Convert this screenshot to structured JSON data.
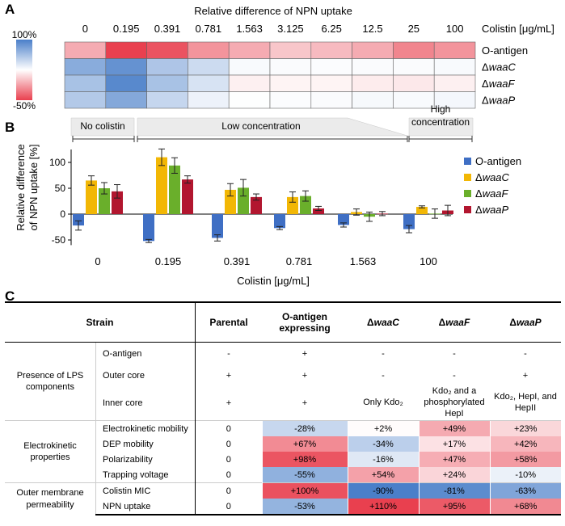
{
  "panel_labels": {
    "a": "A",
    "b": "B",
    "c": "C"
  },
  "chart_data": [
    {
      "type": "heatmap",
      "title": "Relative difference of NPN uptake",
      "x_label": "Colistin [μg/mL]",
      "x_categories": [
        "0",
        "0.195",
        "0.391",
        "0.781",
        "1.563",
        "3.125",
        "6.25",
        "12.5",
        "25",
        "100"
      ],
      "rows": [
        {
          "prefix": "",
          "name": "O-antigen"
        },
        {
          "prefix": "Δ",
          "name": "waaC"
        },
        {
          "prefix": "Δ",
          "name": "waaF"
        },
        {
          "prefix": "Δ",
          "name": "waaP"
        }
      ],
      "values": [
        [
          -22,
          -50,
          -45,
          -28,
          -22,
          -15,
          -18,
          -22,
          -32,
          -28
        ],
        [
          65,
          85,
          45,
          28,
          4,
          3,
          2,
          3,
          3,
          4
        ],
        [
          48,
          92,
          48,
          22,
          -4,
          -3,
          -3,
          -5,
          -6,
          -4
        ],
        [
          42,
          68,
          32,
          10,
          1,
          2,
          3,
          5,
          4,
          6
        ]
      ],
      "colorbar": {
        "max_label": "100%",
        "min_label": "-50%",
        "max": 100,
        "min": -50,
        "max_color": "#4a7fc9",
        "mid_color": "#ffffff",
        "min_color": "#e9404f"
      }
    },
    {
      "type": "bar",
      "ylabel_line1": "Relative difference",
      "ylabel_line2": "of NPN uptake [%]",
      "xlabel": "Colistin [μg/mL]",
      "categories": [
        "0",
        "0.195",
        "0.391",
        "0.781",
        "1.563",
        "100"
      ],
      "ylim": [
        -60,
        130
      ],
      "yticks": [
        -50,
        0,
        50,
        100
      ],
      "brackets": [
        "No colistin",
        "Low concentration",
        "High concentration"
      ],
      "series": [
        {
          "prefix": "",
          "name": "O-antigen",
          "color": "#3f6fc4",
          "values": [
            -22,
            -52,
            -46,
            -27,
            -21,
            -29
          ],
          "errors": [
            9,
            3,
            6,
            3,
            4,
            7
          ]
        },
        {
          "prefix": "Δ",
          "name": "waaC",
          "color": "#f2b705",
          "values": [
            65,
            110,
            47,
            33,
            4,
            14
          ],
          "errors": [
            9,
            16,
            12,
            10,
            6,
            2
          ]
        },
        {
          "prefix": "Δ",
          "name": "waaF",
          "color": "#6aaf2b",
          "values": [
            50,
            94,
            51,
            35,
            -5,
            1
          ],
          "errors": [
            11,
            15,
            16,
            10,
            9,
            9
          ]
        },
        {
          "prefix": "Δ",
          "name": "waaP",
          "color": "#b2162f",
          "values": [
            44,
            67,
            33,
            11,
            1,
            7
          ],
          "errors": [
            13,
            7,
            6,
            4,
            4,
            10
          ]
        }
      ]
    }
  ],
  "table": {
    "headers": {
      "strain": "Strain",
      "parental": "Parental",
      "oantigen": "O-antigen expressing",
      "prefix": "Δ",
      "waaC": "waaC",
      "waaF": "waaF",
      "waaP": "waaP"
    },
    "groups": [
      {
        "label": "Presence of LPS components",
        "rows": [
          {
            "label": "O-antigen",
            "parental": "-",
            "oantigen": "+",
            "waaC": "-",
            "waaF": "-",
            "waaP": "-"
          },
          {
            "label": "Outer core",
            "parental": "+",
            "oantigen": "+",
            "waaC": "-",
            "waaF": "-",
            "waaP": "+"
          },
          {
            "label": "Inner core",
            "parental": "+",
            "oantigen": "+",
            "waaC": "Only Kdo₂",
            "waaF": "Kdo₂ and a phosphorylated HepI",
            "waaP": "Kdo₂, HepI, and HepII"
          }
        ]
      },
      {
        "label": "Electrokinetic properties",
        "rows": [
          {
            "label": "Electrokinetic mobility",
            "parental": "0",
            "oantigen": "-28%",
            "waaC": "+2%",
            "waaF": "+49%",
            "waaP": "+23%",
            "nums": [
              -28,
              2,
              49,
              23
            ]
          },
          {
            "label": "DEP mobility",
            "parental": "0",
            "oantigen": "+67%",
            "waaC": "-34%",
            "waaF": "+17%",
            "waaP": "+42%",
            "nums": [
              67,
              -34,
              17,
              42
            ]
          },
          {
            "label": "Polarizability",
            "parental": "0",
            "oantigen": "+98%",
            "waaC": "-16%",
            "waaF": "+47%",
            "waaP": "+58%",
            "nums": [
              98,
              -16,
              47,
              58
            ]
          },
          {
            "label": "Trapping voltage",
            "parental": "0",
            "oantigen": "-55%",
            "waaC": "+54%",
            "waaF": "+24%",
            "waaP": "-10%",
            "nums": [
              -55,
              54,
              24,
              -10
            ]
          }
        ]
      },
      {
        "label": "Outer membrane permeability",
        "rows": [
          {
            "label": "Colistin MIC",
            "parental": "0",
            "oantigen": "+100%",
            "waaC": "-90%",
            "waaF": "-81%",
            "waaP": "-63%",
            "nums": [
              100,
              -90,
              -81,
              -63
            ]
          },
          {
            "label": "NPN uptake",
            "parental": "0",
            "oantigen": "-53%",
            "waaC": "+110%",
            "waaF": "+95%",
            "waaP": "+68%",
            "nums": [
              -53,
              110,
              95,
              68
            ]
          }
        ]
      }
    ]
  }
}
